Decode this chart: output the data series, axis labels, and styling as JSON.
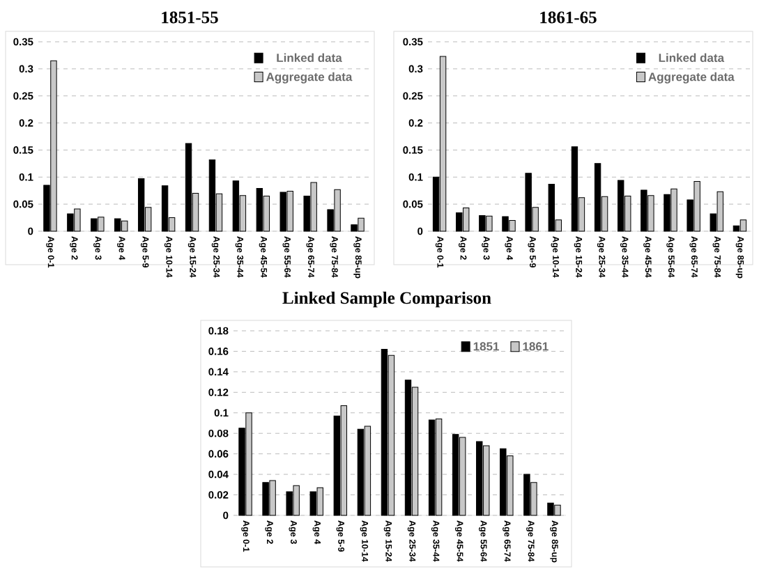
{
  "chart_data": [
    {
      "type": "bar",
      "title": "1851-55",
      "categories": [
        "Age 0-1",
        "Age 2",
        "Age 3",
        "Age 4",
        "Age 5-9",
        "Age 10-14",
        "Age 15-24",
        "Age 25-34",
        "Age 35-44",
        "Age 45-54",
        "Age 55-64",
        "Age 65-74",
        "Age 75-84",
        "Age 85-up"
      ],
      "series": [
        {
          "name": "Linked data",
          "color": "#000000",
          "values": [
            0.085,
            0.032,
            0.023,
            0.023,
            0.097,
            0.084,
            0.162,
            0.132,
            0.093,
            0.079,
            0.072,
            0.065,
            0.04,
            0.012
          ]
        },
        {
          "name": "Aggregate data",
          "color": "#c8c8c8",
          "values": [
            0.315,
            0.041,
            0.026,
            0.019,
            0.044,
            0.025,
            0.07,
            0.069,
            0.066,
            0.065,
            0.074,
            0.09,
            0.077,
            0.024
          ]
        }
      ],
      "ylim": [
        0,
        0.35
      ],
      "yticks": [
        0,
        0.05,
        0.1,
        0.15,
        0.2,
        0.25,
        0.3,
        0.35
      ],
      "grid": "y",
      "legend": "top right"
    },
    {
      "type": "bar",
      "title": "1861-65",
      "categories": [
        "Age 0-1",
        "Age 2",
        "Age 3",
        "Age 4",
        "Age 5-9",
        "Age 10-14",
        "Age 15-24",
        "Age 25-34",
        "Age 35-44",
        "Age 45-54",
        "Age 55-64",
        "Age 65-74",
        "Age 75-84",
        "Age 85-up"
      ],
      "series": [
        {
          "name": "Linked data",
          "color": "#000000",
          "values": [
            0.1,
            0.034,
            0.029,
            0.027,
            0.107,
            0.087,
            0.156,
            0.125,
            0.094,
            0.076,
            0.068,
            0.058,
            0.032,
            0.01
          ]
        },
        {
          "name": "Aggregate data",
          "color": "#c8c8c8",
          "values": [
            0.323,
            0.043,
            0.028,
            0.02,
            0.044,
            0.021,
            0.062,
            0.064,
            0.065,
            0.066,
            0.078,
            0.092,
            0.073,
            0.021
          ]
        }
      ],
      "ylim": [
        0,
        0.35
      ],
      "yticks": [
        0,
        0.05,
        0.1,
        0.15,
        0.2,
        0.25,
        0.3,
        0.35
      ],
      "grid": "y",
      "legend": "top right"
    },
    {
      "type": "bar",
      "title": "Linked Sample Comparison",
      "categories": [
        "Age 0-1",
        "Age 2",
        "Age 3",
        "Age 4",
        "Age 5-9",
        "Age 10-14",
        "Age 15-24",
        "Age 25-34",
        "Age 35-44",
        "Age 45-54",
        "Age 55-64",
        "Age 65-74",
        "Age 75-84",
        "Age 85-up"
      ],
      "series": [
        {
          "name": "1851",
          "color": "#000000",
          "values": [
            0.085,
            0.032,
            0.023,
            0.023,
            0.097,
            0.084,
            0.162,
            0.132,
            0.093,
            0.079,
            0.072,
            0.065,
            0.04,
            0.012
          ]
        },
        {
          "name": "1861",
          "color": "#c8c8c8",
          "values": [
            0.1,
            0.034,
            0.029,
            0.027,
            0.107,
            0.087,
            0.156,
            0.125,
            0.094,
            0.076,
            0.068,
            0.058,
            0.032,
            0.01
          ]
        }
      ],
      "ylim": [
        0,
        0.18
      ],
      "yticks": [
        0,
        0.02,
        0.04,
        0.06,
        0.08,
        0.1,
        0.12,
        0.14,
        0.16,
        0.18
      ],
      "grid": "y",
      "legend": "top right"
    }
  ]
}
